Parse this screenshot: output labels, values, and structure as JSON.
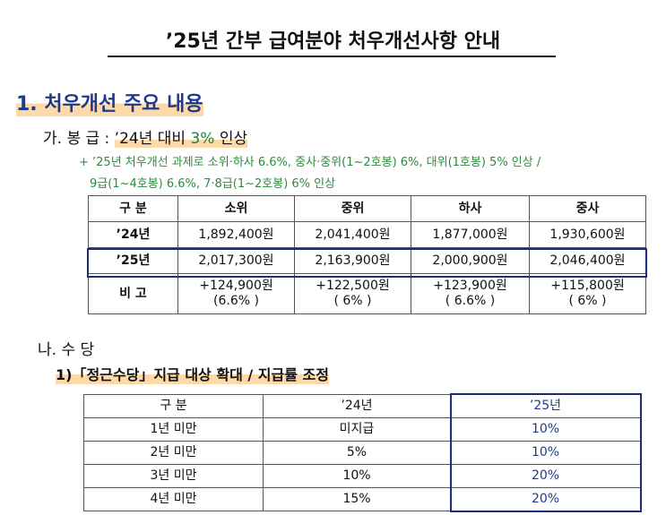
{
  "header": {
    "title": "’25년 간부 급여분야 처우개선사항 안내"
  },
  "section1": {
    "heading": "1. 처우개선 주요 내용",
    "salary": {
      "label": "가. 봉 급 :",
      "highlight_before": "’24년 대비",
      "highlight_rate": "3%",
      "highlight_after": "인상",
      "note_lines": [
        "+ ’25년 처우개선 과제로 소위·하사 6.6%, 중사·중위(1~2호봉) 6%, 대위(1호봉) 5% 인상 /",
        "9급(1~4호봉) 6.6%, 7·8급(1~2호봉) 6% 인상"
      ]
    },
    "table": {
      "header": [
        "구 분",
        "소위",
        "중위",
        "하사",
        "중사"
      ],
      "rows": [
        [
          "’24년",
          "1,892,400원",
          "2,041,400원",
          "1,877,000원",
          "1,930,600원"
        ],
        [
          "’25년",
          "2,017,300원",
          "2,163,900원",
          "2,000,900원",
          "2,046,400원"
        ]
      ],
      "remarks": {
        "label": "비 고",
        "cells": [
          [
            "+124,900원",
            "(6.6% )"
          ],
          [
            "+122,500원",
            "( 6% )"
          ],
          [
            "+123,900원",
            "( 6.6% )"
          ],
          [
            "+115,800원",
            "( 6% )"
          ]
        ]
      }
    }
  },
  "section2": {
    "heading": "나. 수 당",
    "item": "1)「정근수당」지급 대상 확대 / 지급률 조정",
    "table": {
      "header": [
        "구 분",
        "’24년",
        "’25년"
      ],
      "rows": [
        [
          "1년 미만",
          "미지급",
          "10%"
        ],
        [
          "2년 미만",
          "5%",
          "10%"
        ],
        [
          "3년 미만",
          "10%",
          "20%"
        ],
        [
          "4년 미만",
          "15%",
          "20%"
        ]
      ]
    }
  }
}
